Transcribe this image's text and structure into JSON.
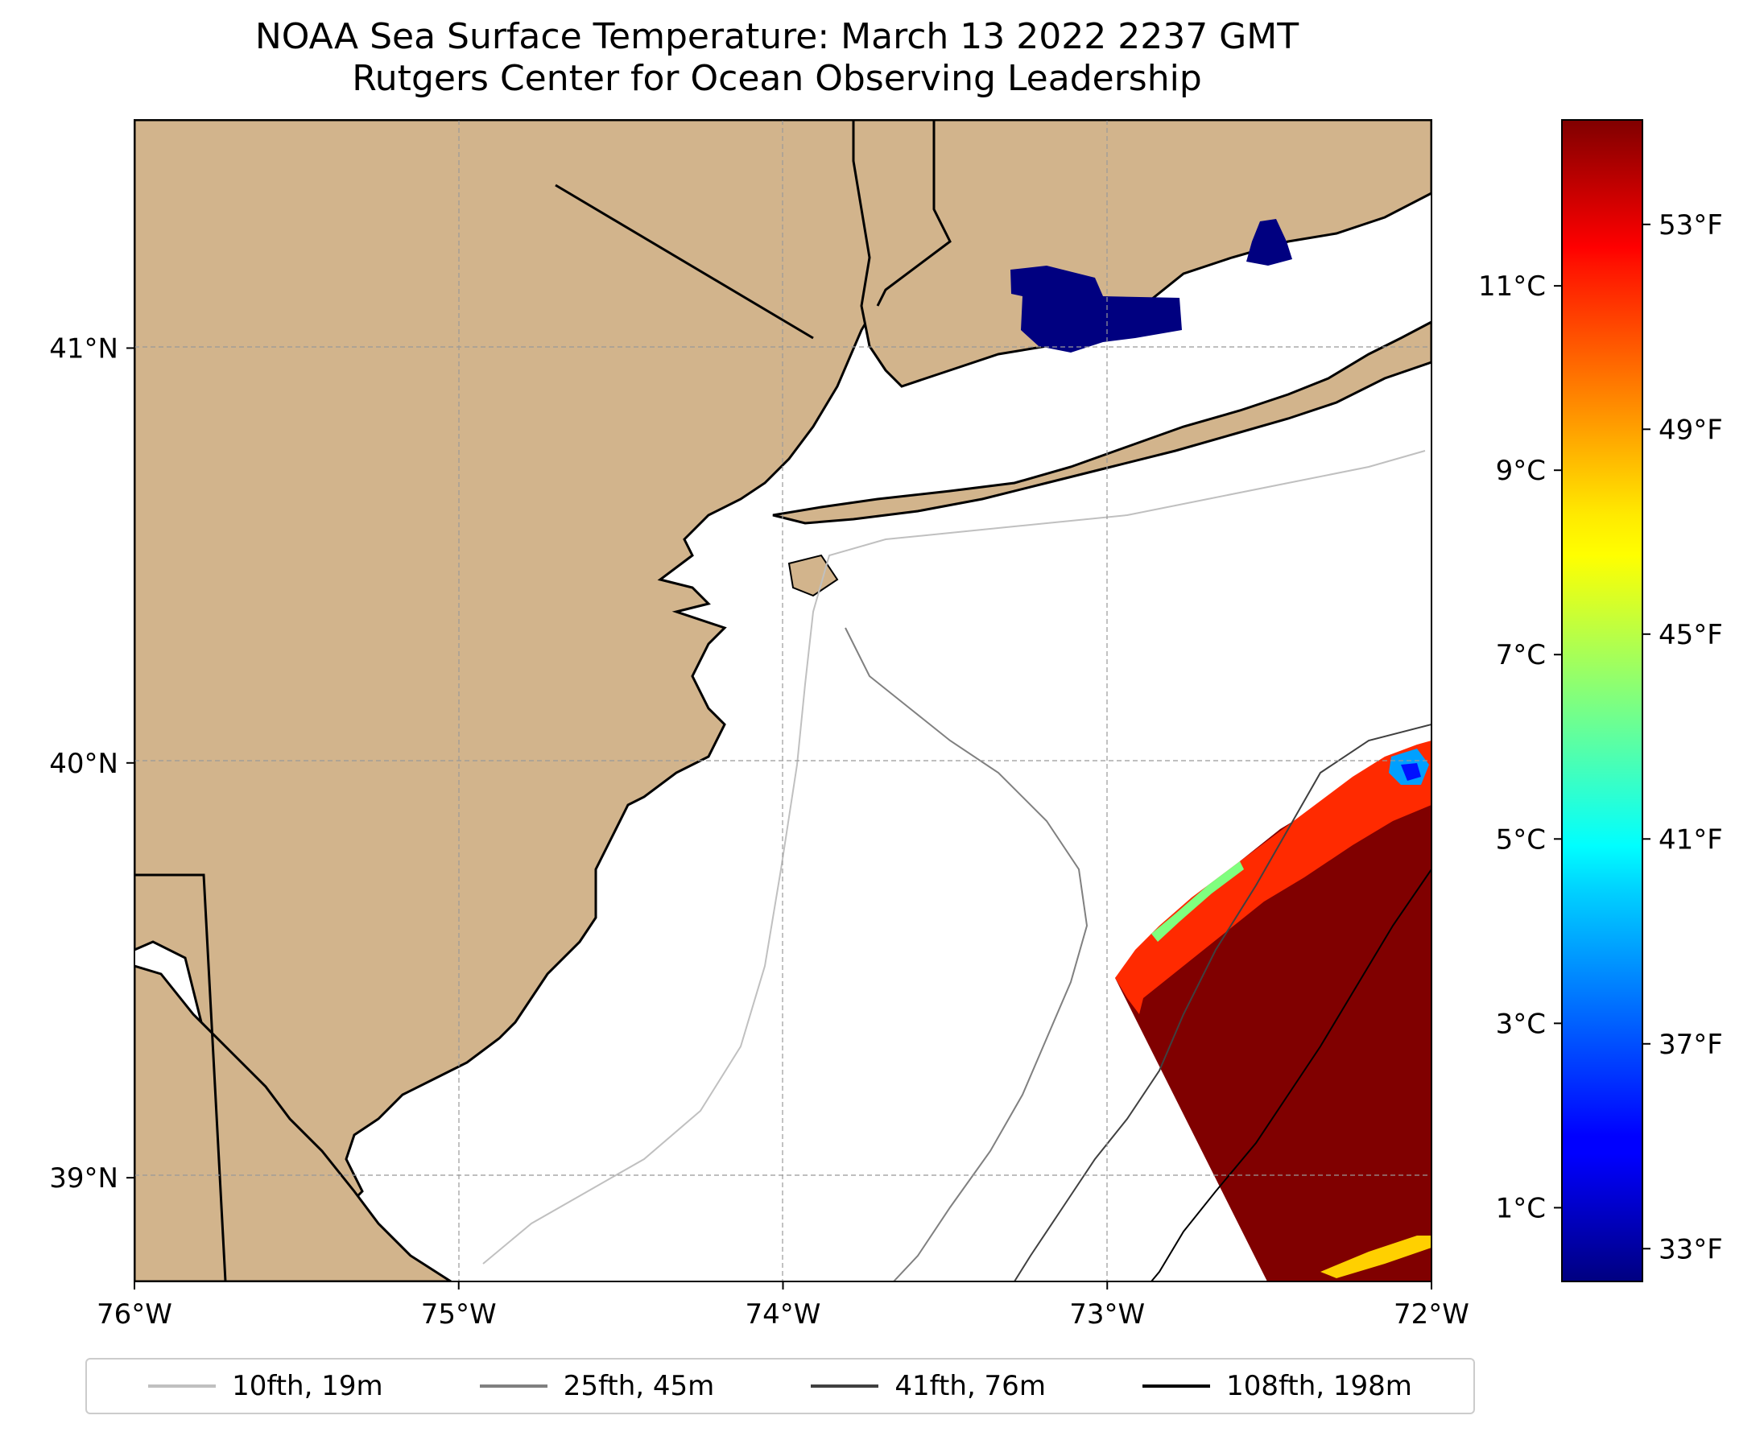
{
  "title": {
    "line1": "NOAA Sea Surface Temperature: March 13 2022 2237 GMT",
    "line2": "Rutgers Center for Ocean Observing Leadership"
  },
  "map": {
    "lon_range": [
      -76,
      -72
    ],
    "lat_range": [
      38.75,
      41.55
    ],
    "x_ticks": [
      {
        "lon": -76,
        "label": "76°W"
      },
      {
        "lon": -75,
        "label": "75°W"
      },
      {
        "lon": -74,
        "label": "74°W"
      },
      {
        "lon": -73,
        "label": "73°W"
      },
      {
        "lon": -72,
        "label": "72°W"
      }
    ],
    "y_ticks": [
      {
        "lat": 39,
        "label": "39°N"
      },
      {
        "lat": 40,
        "label": "40°N"
      },
      {
        "lat": 41,
        "label": "41°N"
      }
    ],
    "land_color": "#d2b48c",
    "ocean_color": "#ffffff"
  },
  "colorbar": {
    "cmap": "jet",
    "range_c": [
      0.2,
      12.8
    ],
    "celsius_ticks": [
      {
        "value": 1,
        "label": "1°C"
      },
      {
        "value": 3,
        "label": "3°C"
      },
      {
        "value": 5,
        "label": "5°C"
      },
      {
        "value": 7,
        "label": "7°C"
      },
      {
        "value": 9,
        "label": "9°C"
      },
      {
        "value": 11,
        "label": "11°C"
      }
    ],
    "fahrenheit_ticks": [
      {
        "value": 33,
        "label": "33°F"
      },
      {
        "value": 37,
        "label": "37°F"
      },
      {
        "value": 41,
        "label": "41°F"
      },
      {
        "value": 45,
        "label": "45°F"
      },
      {
        "value": 49,
        "label": "49°F"
      },
      {
        "value": 53,
        "label": "53°F"
      }
    ]
  },
  "legend": [
    {
      "label": "10fth, 19m",
      "color": "#c0c0c0"
    },
    {
      "label": "25fth, 45m",
      "color": "#808080"
    },
    {
      "label": "41fth, 76m",
      "color": "#404040"
    },
    {
      "label": "108fth, 198m",
      "color": "#000000"
    }
  ]
}
